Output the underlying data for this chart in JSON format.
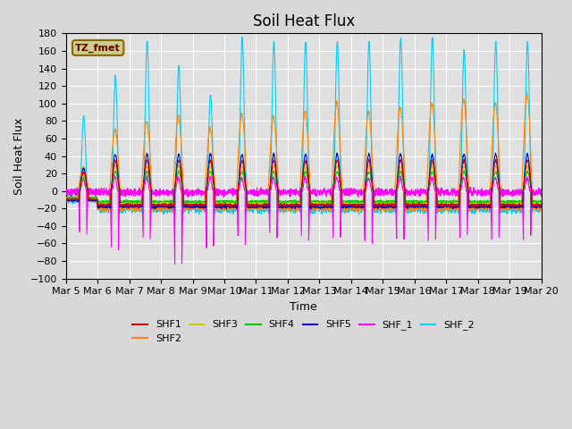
{
  "title": "Soil Heat Flux",
  "xlabel": "Time",
  "ylabel": "Soil Heat Flux",
  "ylim": [
    -100,
    180
  ],
  "yticks": [
    -100,
    -80,
    -60,
    -40,
    -20,
    0,
    20,
    40,
    60,
    80,
    100,
    120,
    140,
    160,
    180
  ],
  "x_tick_labels": [
    "Mar 5",
    "Mar 6",
    "Mar 7",
    "Mar 8",
    "Mar 9",
    "Mar 10",
    "Mar 11",
    "Mar 12",
    "Mar 13",
    "Mar 14",
    "Mar 15",
    "Mar 16",
    "Mar 17",
    "Mar 18",
    "Mar 19",
    "Mar 20"
  ],
  "series_colors": {
    "SHF1": "#cc0000",
    "SHF2": "#ff8800",
    "SHF3": "#cccc00",
    "SHF4": "#00cc00",
    "SHF5": "#0000cc",
    "SHF_1": "#ff00ff",
    "SHF_2": "#00ccff"
  },
  "annotation_text": "TZ_fmet",
  "annotation_bg": "#cccc88",
  "annotation_border": "#886600",
  "bg_color": "#e0e0e0",
  "grid_color": "#ffffff",
  "fig_bg": "#d8d8d8",
  "title_fontsize": 12,
  "label_fontsize": 9,
  "tick_fontsize": 8
}
